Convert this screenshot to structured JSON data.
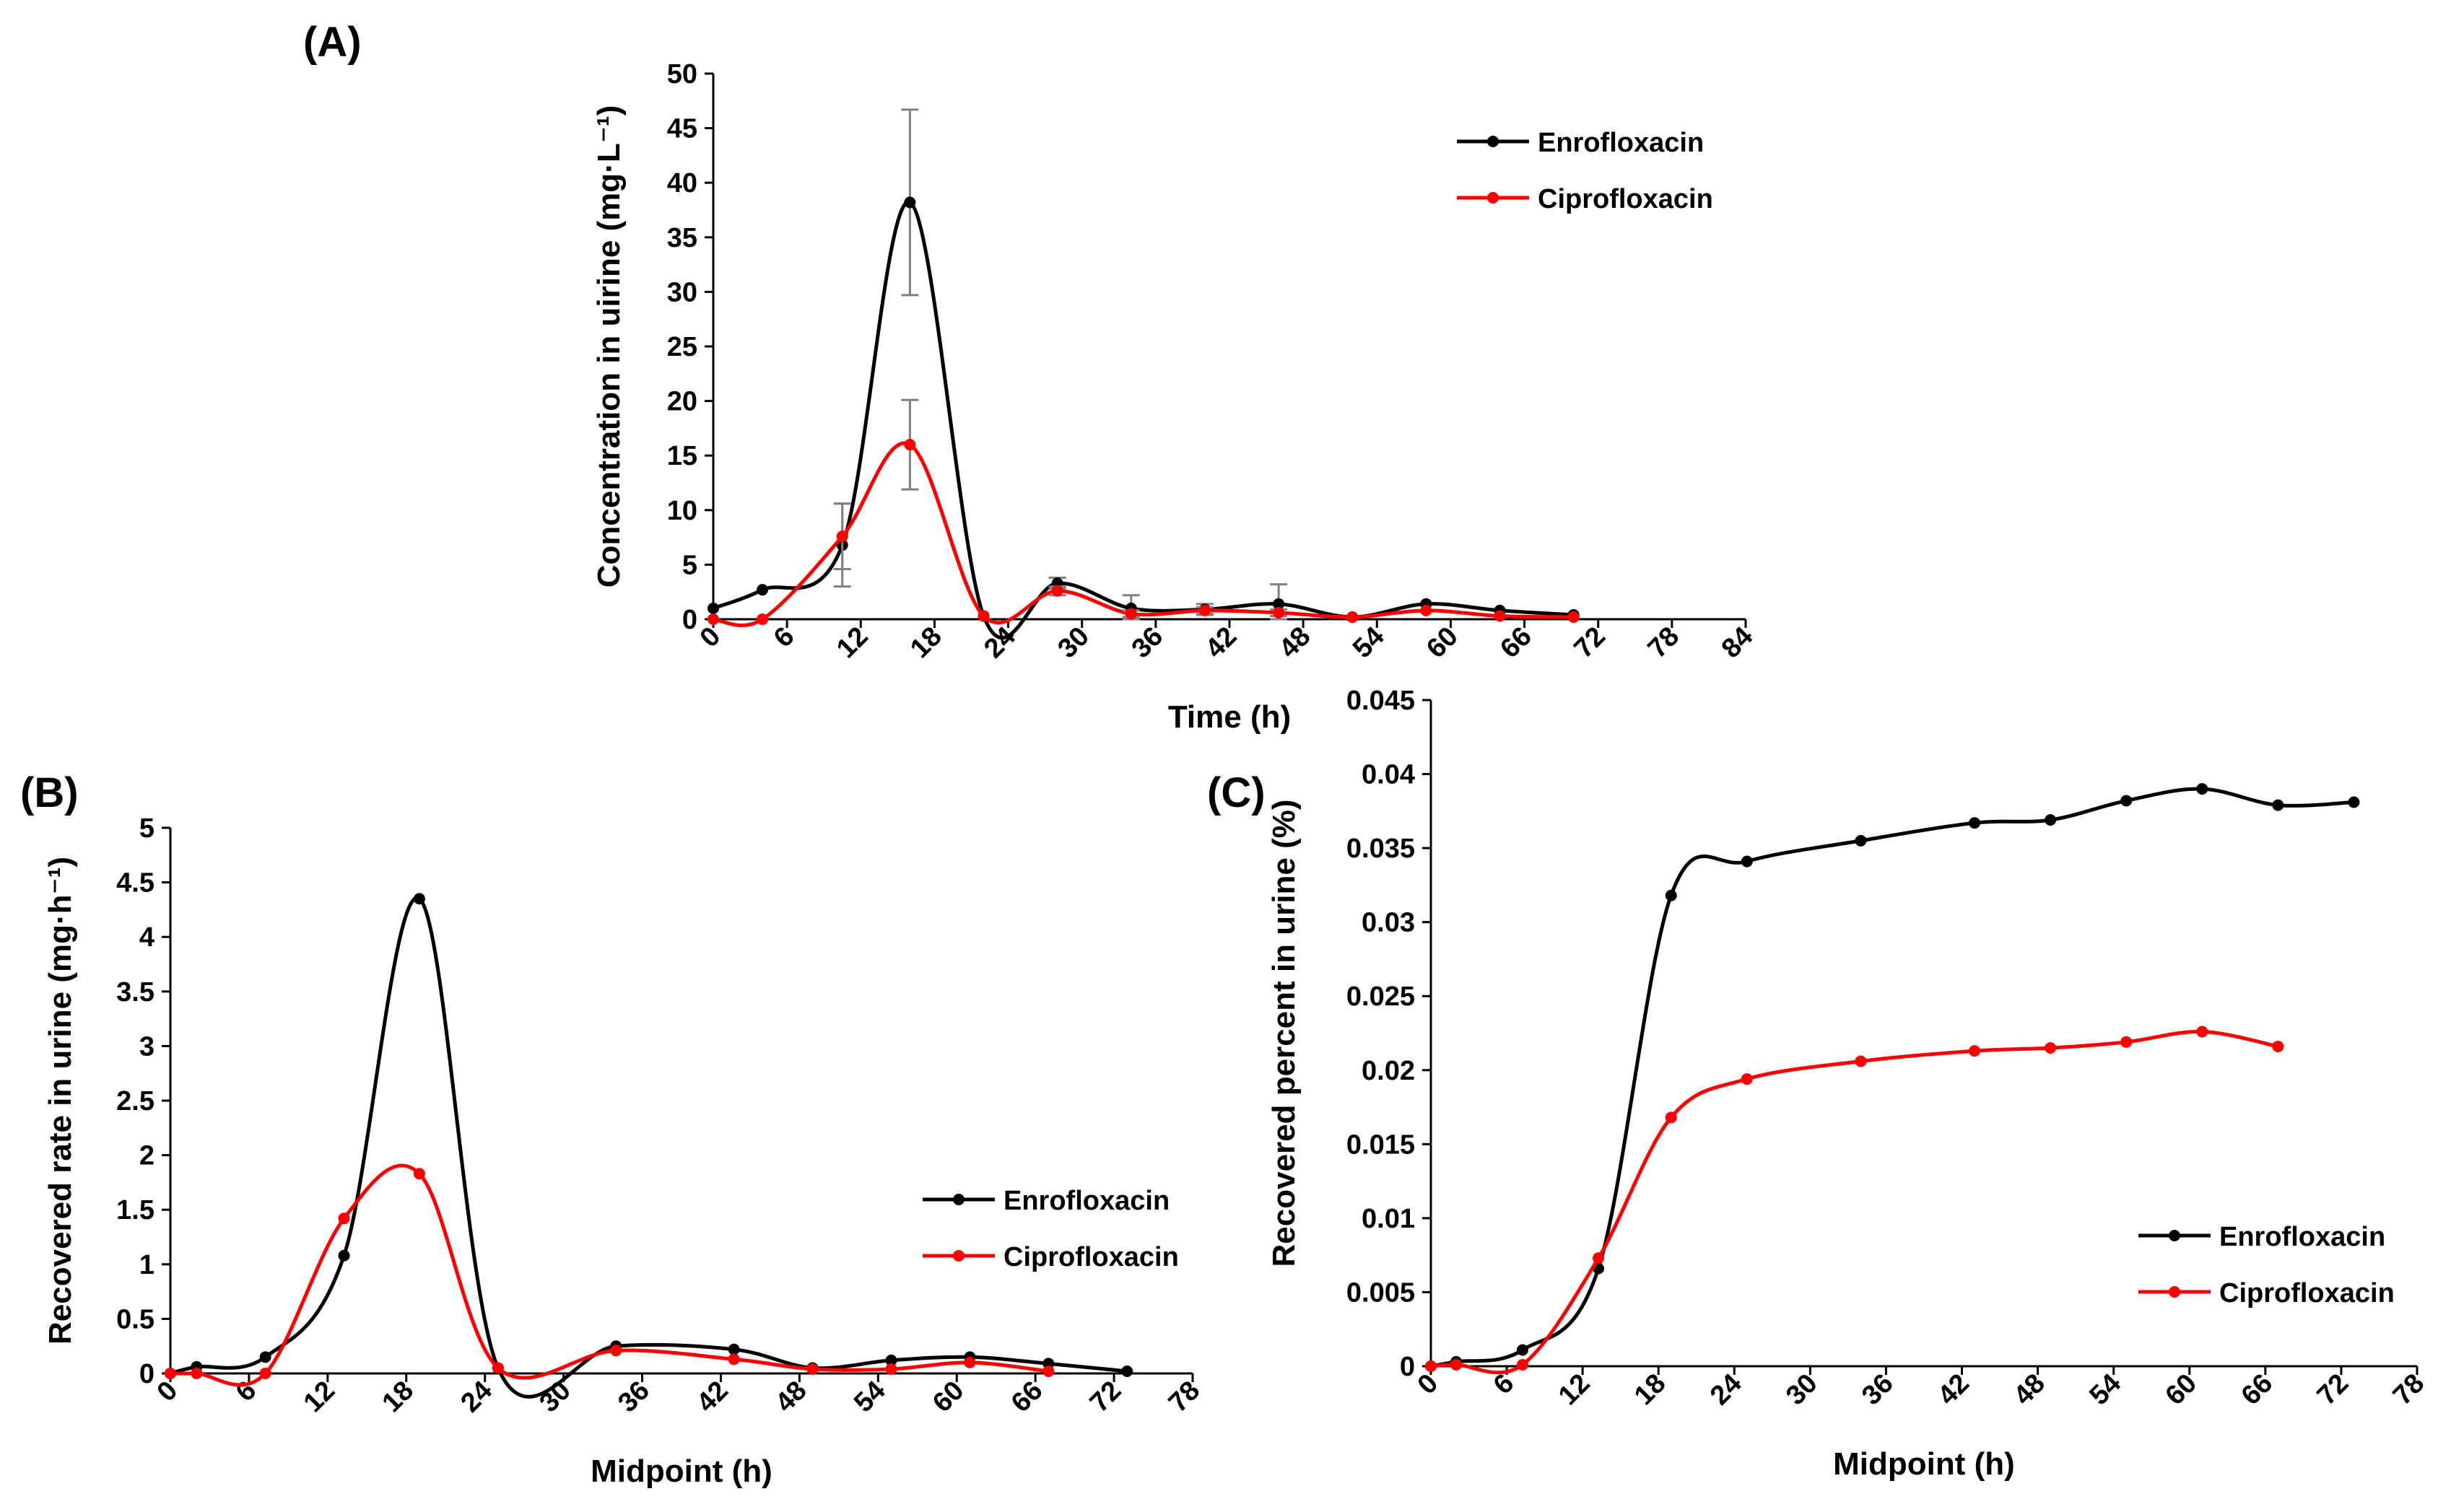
{
  "chart_data": [
    {
      "type": "line",
      "panel": "(A)",
      "xlabel": "Time (h)",
      "ylabel": "Concentration in uirine (mg·L⁻¹)",
      "xlim": [
        0,
        84
      ],
      "ylim": [
        0,
        50
      ],
      "xticks": [
        0,
        6,
        12,
        18,
        24,
        30,
        36,
        42,
        48,
        54,
        60,
        66,
        72,
        78,
        84
      ],
      "yticks": [
        0,
        5,
        10,
        15,
        20,
        25,
        30,
        35,
        40,
        45,
        50
      ],
      "legend": "top-right",
      "series": [
        {
          "name": "Enrofloxacin",
          "color": "#000000",
          "x": [
            0,
            4,
            10.5,
            16,
            22,
            28,
            34,
            40,
            46,
            52,
            58,
            64,
            70
          ],
          "y": [
            1.0,
            2.7,
            6.8,
            38.2,
            0.3,
            3.3,
            1.0,
            0.9,
            1.4,
            0.2,
            1.4,
            0.8,
            0.4
          ],
          "err": [
            0,
            0,
            3.8,
            8.5,
            0,
            0.5,
            1.2,
            0.5,
            1.8,
            0,
            0,
            0,
            0
          ]
        },
        {
          "name": "Ciprofloxacin",
          "color": "#ff0000",
          "x": [
            0,
            4,
            10.5,
            16,
            22,
            28,
            34,
            40,
            46,
            52,
            58,
            64,
            70
          ],
          "y": [
            0.0,
            0.0,
            7.6,
            16.0,
            0.3,
            2.6,
            0.5,
            0.8,
            0.6,
            0.2,
            0.8,
            0.3,
            0.2
          ],
          "err": [
            0,
            0,
            3.0,
            4.1,
            0,
            0.4,
            0.3,
            0.3,
            0.3,
            0,
            0,
            0,
            0
          ]
        }
      ]
    },
    {
      "type": "line",
      "panel": "(B)",
      "xlabel": "Midpoint (h)",
      "ylabel": "Recovered rate in urine (mg·h⁻¹)",
      "xlim": [
        0,
        78
      ],
      "ylim": [
        0,
        5
      ],
      "xticks": [
        0,
        6,
        12,
        18,
        24,
        30,
        36,
        42,
        48,
        54,
        60,
        66,
        72,
        78
      ],
      "yticks": [
        0,
        0.5,
        1,
        1.5,
        2,
        2.5,
        3,
        3.5,
        4,
        4.5,
        5
      ],
      "legend": "right",
      "series": [
        {
          "name": "Enrofloxacin",
          "color": "#000000",
          "x": [
            0,
            2,
            7.25,
            13.25,
            19,
            25,
            34,
            43,
            49,
            55,
            61,
            67,
            73
          ],
          "y": [
            0,
            0.06,
            0.15,
            1.08,
            4.35,
            0.05,
            0.25,
            0.22,
            0.05,
            0.12,
            0.15,
            0.09,
            0.02
          ],
          "err": []
        },
        {
          "name": "Ciprofloxacin",
          "color": "#ff0000",
          "x": [
            0,
            2,
            7.25,
            13.25,
            19,
            25,
            34,
            43,
            49,
            55,
            61,
            67
          ],
          "y": [
            0,
            0,
            0,
            1.42,
            1.83,
            0.05,
            0.21,
            0.13,
            0.04,
            0.04,
            0.1,
            0.02
          ],
          "err": []
        }
      ]
    },
    {
      "type": "line",
      "panel": "(C)",
      "xlabel": "Midpoint (h)",
      "ylabel": "Recovered percent in urine (%)",
      "xlim": [
        0,
        78
      ],
      "ylim": [
        0,
        0.045
      ],
      "xticks": [
        0,
        6,
        12,
        18,
        24,
        30,
        36,
        42,
        48,
        54,
        60,
        66,
        72,
        78
      ],
      "yticks": [
        0,
        0.005,
        0.01,
        0.015,
        0.02,
        0.025,
        0.03,
        0.035,
        0.04,
        0.045
      ],
      "legend": "bottom-right",
      "series": [
        {
          "name": "Enrofloxacin",
          "color": "#000000",
          "x": [
            0,
            2,
            7.25,
            13.25,
            19,
            25,
            34,
            43,
            49,
            55,
            61,
            67,
            73
          ],
          "y": [
            0,
            0.0003,
            0.0011,
            0.0066,
            0.0318,
            0.0341,
            0.0355,
            0.0367,
            0.0369,
            0.0382,
            0.039,
            0.0379,
            0.0381
          ],
          "err": []
        },
        {
          "name": "Ciprofloxacin",
          "color": "#ff0000",
          "x": [
            0,
            2,
            7.25,
            13.25,
            19,
            25,
            34,
            43,
            49,
            55,
            61,
            67
          ],
          "y": [
            0,
            0.0001,
            0.0001,
            0.0073,
            0.0168,
            0.0194,
            0.0206,
            0.0213,
            0.0215,
            0.0219,
            0.0226,
            0.0216
          ],
          "err": []
        }
      ]
    }
  ]
}
